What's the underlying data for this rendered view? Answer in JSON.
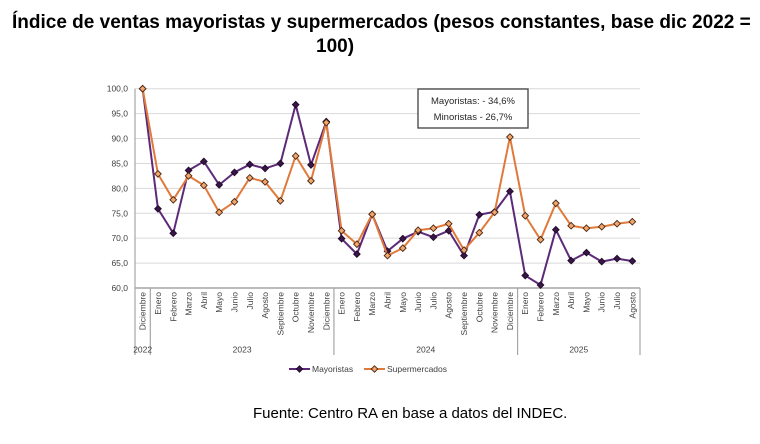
{
  "chart_data": {
    "type": "line",
    "title_lines": [
      "Índice de ventas mayoristas y supermercados (pesos constantes, base dic 2022 =",
      "100)"
    ],
    "categories": [
      "Diciembre",
      "Enero",
      "Febrero",
      "Marzo",
      "Abril",
      "Mayo",
      "Junio",
      "Julio",
      "Agosto",
      "Septiembre",
      "Octubre",
      "Noviembre",
      "Diciembre",
      "Enero",
      "Febrero",
      "Marzo",
      "Abril",
      "Mayo",
      "Junio",
      "Julio",
      "Agosto",
      "Septiembre",
      "Octubre",
      "Noviembre",
      "Diciembre",
      "Enero",
      "Febrero",
      "Marzo",
      "Abril",
      "Mayo",
      "Junio",
      "Julio",
      "Agosto"
    ],
    "year_groups": [
      {
        "label": "2022",
        "count": 1
      },
      {
        "label": "2023",
        "count": 12
      },
      {
        "label": "2024",
        "count": 12
      },
      {
        "label": "2025",
        "count": 8
      }
    ],
    "series": [
      {
        "name": "Mayoristas",
        "color": "#5c2a78",
        "marker_fill": "#3a1648",
        "marker_stroke": "#1e0a28",
        "values": [
          100.0,
          75.9,
          71.0,
          83.6,
          85.4,
          80.7,
          83.2,
          84.8,
          84.0,
          85.0,
          96.8,
          84.7,
          93.4,
          69.9,
          66.8,
          74.8,
          67.4,
          69.9,
          71.3,
          70.2,
          71.5,
          66.5,
          74.7,
          75.3,
          79.4,
          62.5,
          60.6,
          71.7,
          65.5,
          67.1,
          65.3,
          65.9,
          65.4
        ]
      },
      {
        "name": "Supermercados",
        "color": "#e07a3a",
        "marker_fill": "#f0a66c",
        "marker_stroke": "#4a2410",
        "values": [
          100.0,
          82.9,
          77.7,
          82.5,
          80.6,
          75.2,
          77.3,
          82.1,
          81.3,
          77.5,
          86.5,
          81.5,
          93.2,
          71.5,
          68.8,
          74.8,
          66.5,
          68.0,
          71.6,
          72.0,
          72.9,
          67.6,
          71.1,
          75.2,
          90.3,
          74.5,
          69.7,
          77.0,
          72.5,
          72.0,
          72.3,
          72.9,
          73.3
        ]
      }
    ],
    "ylim": [
      60,
      100
    ],
    "yticks": [
      60,
      65,
      70,
      75,
      80,
      85,
      90,
      95,
      100
    ],
    "ytick_labels": [
      "60,0",
      "65,0",
      "70,0",
      "75,0",
      "80,0",
      "85,0",
      "90,0",
      "95,0",
      "100,0"
    ],
    "xlabel": "",
    "ylabel": "",
    "grid": true,
    "legend_position": "bottom",
    "annotation": [
      "Mayoristas: - 34,6%",
      "Minoristas - 26,7%"
    ],
    "source": "Fuente: Centro RA en base a datos del INDEC."
  }
}
